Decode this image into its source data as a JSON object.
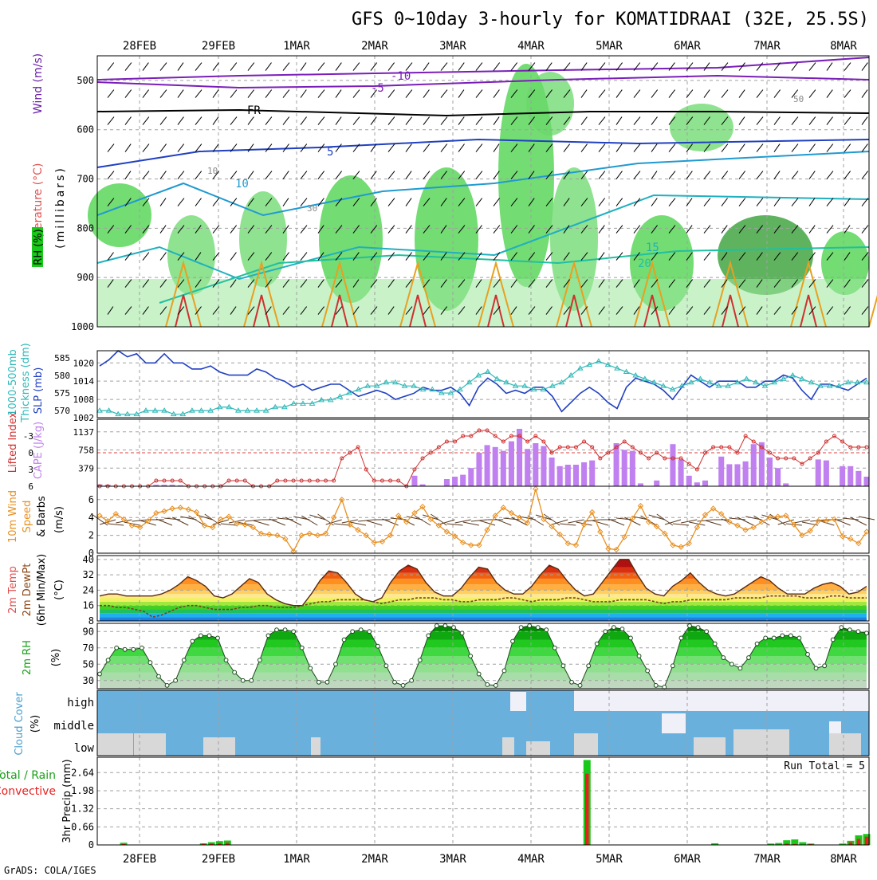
{
  "title": "GFS 0~10day 3-hourly for KOMATIDRAAI (32E, 25.5S)",
  "credit": "GrADS: COLA/IGES",
  "colors": {
    "rh": "#19c819",
    "temp": "#e05050",
    "wind": "#6a1fa8",
    "slp": "#2040c0",
    "thick": "#30b8b8",
    "cape": "#c080f0",
    "lifted": "#d03030",
    "wind10": "#e89020",
    "cloud": "#6ab0dc",
    "precip_total": "#19c819",
    "precip_conv": "#e82020",
    "grid": "#a0a0a0"
  },
  "chart_data": [
    {
      "type": "heatmap",
      "name": "upper-air",
      "x_dates": [
        "28FEB",
        "29FEB",
        "1MAR",
        "2MAR",
        "3MAR",
        "4MAR",
        "5MAR",
        "6MAR",
        "7MAR",
        "8MAR"
      ],
      "y_ticks": [
        500,
        600,
        700,
        800,
        900,
        1000
      ],
      "ylim": [
        450,
        1000
      ],
      "ylabel": "(millibars)",
      "legend": [
        "RH (%)",
        "Temperature (°C)",
        "Wind (m/s)"
      ],
      "temp_contour_labels": [
        "-10",
        "-5",
        "FR",
        "5",
        "10",
        "15",
        "20"
      ],
      "rh_contour_labels": [
        "10",
        "30",
        "50"
      ]
    },
    {
      "type": "line",
      "name": "slp-thickness",
      "series": [
        {
          "name": "SLP (mb)",
          "axis": "right",
          "values": [
            1019,
            1021,
            1024,
            1022,
            1023,
            1020,
            1020,
            1023,
            1020,
            1020,
            1018,
            1018,
            1019,
            1017,
            1016,
            1016,
            1016,
            1018,
            1017,
            1015,
            1014,
            1012,
            1013,
            1011,
            1012,
            1013,
            1013,
            1011,
            1009,
            1010,
            1011,
            1010,
            1008,
            1009,
            1010,
            1012,
            1011,
            1011,
            1012,
            1010,
            1006,
            1012,
            1015,
            1013,
            1010,
            1011,
            1010,
            1012,
            1012,
            1009,
            1004,
            1007,
            1010,
            1012,
            1010,
            1007,
            1005,
            1012,
            1015,
            1014,
            1013,
            1011,
            1008,
            1012,
            1016,
            1014,
            1012,
            1014,
            1014,
            1014,
            1012,
            1012,
            1014,
            1014,
            1016,
            1015,
            1011,
            1008,
            1013,
            1013,
            1012,
            1011,
            1013,
            1015
          ]
        },
        {
          "name": "1000-500mb Thickness (dm)",
          "axis": "left",
          "values": [
            570,
            570,
            569,
            569,
            569,
            570,
            570,
            570,
            569,
            569,
            570,
            570,
            570,
            571,
            571,
            570,
            570,
            570,
            570,
            571,
            571,
            572,
            572,
            572,
            573,
            573,
            574,
            575,
            576,
            577,
            577,
            578,
            578,
            577,
            577,
            576,
            576,
            575,
            575,
            576,
            578,
            580,
            581,
            579,
            578,
            577,
            577,
            576,
            576,
            577,
            578,
            580,
            582,
            583,
            584,
            583,
            582,
            581,
            580,
            579,
            578,
            577,
            576,
            577,
            578,
            579,
            578,
            577,
            577,
            578,
            579,
            578,
            577,
            578,
            579,
            580,
            579,
            578,
            577,
            577,
            577,
            578,
            578,
            578
          ]
        }
      ],
      "y_left_ticks": [
        570,
        575,
        580,
        585
      ],
      "y_right_ticks": [
        1002,
        1008,
        1014,
        1020
      ]
    },
    {
      "type": "bar",
      "name": "cape-lifted",
      "series": [
        {
          "name": "CAPE (J/kg)",
          "values": [
            40,
            30,
            0,
            0,
            0,
            0,
            0,
            30,
            30,
            30,
            20,
            0,
            0,
            0,
            0,
            0,
            0,
            0,
            0,
            0,
            0,
            0,
            0,
            0,
            0,
            0,
            0,
            0,
            0,
            0,
            0,
            0,
            0,
            0,
            0,
            0,
            0,
            0,
            0,
            220,
            40,
            0,
            0,
            150,
            200,
            240,
            380,
            700,
            860,
            820,
            740,
            940,
            1200,
            780,
            900,
            840,
            600,
            420,
            450,
            450,
            500,
            540,
            0,
            0,
            900,
            760,
            740,
            60,
            0,
            120,
            0,
            880,
            560,
            220,
            80,
            120,
            0,
            620,
            460,
            460,
            520,
            880,
            920,
            600,
            380,
            60,
            0,
            0,
            0,
            560,
            540,
            0,
            420,
            420,
            320,
            200
          ]
        },
        {
          "name": "Lifted Index",
          "values": [
            6,
            6,
            6,
            6,
            6,
            6,
            6,
            5,
            5,
            5,
            5,
            6,
            6,
            6,
            6,
            6,
            5,
            5,
            5,
            6,
            6,
            6,
            5,
            5,
            5,
            5,
            5,
            5,
            5,
            5,
            1,
            0,
            -1,
            3,
            5,
            5,
            5,
            5,
            6,
            3,
            1,
            0,
            -1,
            -2,
            -2,
            -3,
            -3,
            -4,
            -4,
            -3,
            -2,
            -3,
            -3,
            -2,
            -3,
            -2,
            0,
            -1,
            -1,
            -1,
            -2,
            -1,
            1,
            0,
            -1,
            -2,
            -1,
            0,
            1,
            0,
            1,
            1,
            1,
            2,
            3,
            0,
            -1,
            -1,
            -1,
            0,
            -3,
            -2,
            -1,
            0,
            1,
            1,
            1,
            2,
            1,
            0,
            -2,
            -3,
            -2,
            -1,
            -1,
            -1
          ]
        }
      ],
      "y_cape_ticks": [
        379,
        758,
        1137
      ],
      "y_li_ticks": [
        -3,
        0,
        3,
        6
      ]
    },
    {
      "type": "line",
      "name": "wind10m",
      "series": [
        {
          "name": "10m Wind Speed (m/s)",
          "values": [
            4.2,
            3.6,
            4.4,
            3.8,
            3.1,
            2.9,
            3.6,
            4.5,
            4.7,
            5.0,
            5.1,
            4.9,
            4.6,
            3.1,
            2.9,
            3.8,
            4.1,
            3.3,
            3.2,
            2.9,
            2.2,
            2.1,
            2.0,
            1.6,
            0.2,
            2.0,
            2.2,
            2.0,
            2.2,
            4.0,
            6.0,
            3.2,
            2.6,
            2.0,
            1.2,
            1.3,
            2.0,
            4.2,
            3.5,
            4.5,
            5.2,
            3.8,
            3.1,
            2.4,
            1.9,
            1.2,
            0.9,
            0.9,
            2.6,
            4.2,
            5.1,
            4.5,
            4.0,
            3.4,
            7.2,
            3.8,
            3.0,
            2.1,
            1.1,
            0.9,
            3.2,
            4.6,
            2.4,
            0.5,
            0.4,
            1.8,
            3.9,
            5.3,
            3.5,
            3.0,
            2.2,
            0.9,
            0.7,
            1.1,
            2.9,
            4.3,
            5.0,
            4.4,
            3.5,
            3.1,
            2.6,
            2.9,
            3.5,
            4.0,
            4.1,
            4.2,
            3.2,
            2.0,
            2.5,
            3.6,
            3.6,
            3.8,
            1.9,
            1.6,
            1.1,
            2.4
          ]
        }
      ],
      "y_ticks": [
        0,
        2,
        4,
        6
      ],
      "ylabel": "10m Wind Speed & Barbs (m/s)"
    },
    {
      "type": "area",
      "name": "temp2m",
      "series": [
        {
          "name": "2m Temp",
          "values": [
            21,
            22,
            22,
            21,
            21,
            21,
            21,
            22,
            24,
            27,
            31,
            29,
            26,
            21,
            20,
            22,
            26,
            30,
            28,
            22,
            19,
            17,
            16,
            16,
            22,
            29,
            34,
            33,
            28,
            22,
            19,
            18,
            20,
            28,
            34,
            37,
            35,
            28,
            23,
            21,
            21,
            25,
            31,
            36,
            35,
            28,
            24,
            22,
            22,
            26,
            32,
            37,
            35,
            29,
            24,
            21,
            22,
            28,
            34,
            40,
            40,
            32,
            25,
            22,
            21,
            26,
            29,
            33,
            28,
            24,
            22,
            21,
            22,
            25,
            28,
            31,
            29,
            25,
            22,
            22,
            22,
            25,
            27,
            28,
            26,
            22,
            23,
            26
          ]
        },
        {
          "name": "2m DewPt",
          "values": [
            16,
            16,
            15,
            15,
            14,
            13,
            10,
            11,
            13,
            15,
            16,
            16,
            15,
            14,
            14,
            14,
            15,
            15,
            16,
            16,
            15,
            15,
            15,
            16,
            17,
            18,
            18,
            19,
            19,
            19,
            19,
            18,
            17,
            18,
            19,
            19,
            20,
            20,
            20,
            19,
            19,
            18,
            18,
            19,
            19,
            19,
            20,
            20,
            19,
            18,
            19,
            19,
            19,
            20,
            20,
            19,
            18,
            18,
            18,
            19,
            19,
            19,
            19,
            18,
            17,
            18,
            18,
            19,
            19,
            19,
            19,
            19,
            20,
            20,
            20,
            20,
            21,
            21,
            21,
            21,
            20,
            20,
            20,
            21,
            21,
            20,
            20,
            20
          ]
        }
      ],
      "y_ticks": [
        8,
        16,
        24,
        32,
        40
      ],
      "ylabel": "(°C)"
    },
    {
      "type": "area",
      "name": "rh2m",
      "series": [
        {
          "name": "2m RH",
          "values": [
            38,
            55,
            70,
            68,
            68,
            70,
            52,
            35,
            24,
            30,
            55,
            78,
            85,
            85,
            82,
            55,
            40,
            30,
            30,
            55,
            85,
            92,
            92,
            90,
            70,
            45,
            28,
            28,
            50,
            80,
            90,
            92,
            90,
            72,
            48,
            28,
            24,
            30,
            55,
            85,
            97,
            97,
            95,
            88,
            60,
            38,
            25,
            24,
            42,
            78,
            95,
            97,
            95,
            92,
            70,
            48,
            28,
            24,
            48,
            75,
            90,
            95,
            93,
            82,
            60,
            42,
            24,
            22,
            48,
            82,
            97,
            95,
            90,
            75,
            58,
            50,
            45,
            58,
            75,
            82,
            82,
            85,
            85,
            82,
            62,
            45,
            48,
            80,
            95,
            92,
            90,
            88
          ]
        }
      ],
      "y_ticks": [
        30,
        50,
        70,
        90
      ],
      "ylabel": "(%)"
    },
    {
      "type": "bar",
      "name": "cloud",
      "categories": [
        "high",
        "middle",
        "low"
      ],
      "ylabel": "Cloud Cover (%)"
    },
    {
      "type": "bar",
      "name": "precip",
      "series": [
        {
          "name": "Total / Rain",
          "values": [
            0,
            0,
            0,
            0.08,
            0,
            0,
            0,
            0,
            0,
            0,
            0,
            0,
            0,
            0.06,
            0.1,
            0.14,
            0.16,
            0,
            0,
            0,
            0,
            0,
            0,
            0,
            0,
            0,
            0,
            0,
            0,
            0,
            0,
            0,
            0,
            0,
            0,
            0,
            0,
            0,
            0,
            0,
            0,
            0,
            0,
            0,
            0,
            0,
            0,
            0,
            0,
            0,
            0,
            0,
            0,
            0,
            0,
            0,
            0,
            0,
            0,
            0,
            0,
            3.1,
            0,
            0,
            0,
            0,
            0,
            0,
            0,
            0,
            0,
            0,
            0,
            0,
            0,
            0,
            0,
            0.06,
            0,
            0,
            0,
            0,
            0,
            0,
            0.05,
            0.07,
            0.17,
            0.2,
            0.1,
            0.05,
            0,
            0,
            0,
            0.05,
            0.15,
            0.35,
            0.4
          ]
        },
        {
          "name": "Convective",
          "values": [
            0,
            0,
            0,
            0.03,
            0,
            0,
            0,
            0,
            0,
            0,
            0,
            0,
            0,
            0.04,
            0.05,
            0.06,
            0.08,
            0,
            0,
            0,
            0,
            0,
            0,
            0,
            0,
            0,
            0,
            0,
            0,
            0,
            0,
            0,
            0,
            0,
            0,
            0,
            0,
            0,
            0,
            0,
            0,
            0,
            0,
            0,
            0,
            0,
            0,
            0,
            0,
            0,
            0,
            0,
            0,
            0,
            0,
            0,
            0,
            0,
            0,
            0,
            0,
            2.6,
            0,
            0,
            0,
            0,
            0,
            0,
            0,
            0,
            0,
            0,
            0,
            0,
            0,
            0,
            0,
            0,
            0,
            0,
            0,
            0,
            0,
            0,
            0,
            0,
            0.05,
            0.03,
            0,
            0.03,
            0,
            0,
            0,
            0,
            0.1,
            0.22,
            0.3
          ]
        }
      ],
      "y_ticks": [
        0,
        0.66,
        1.32,
        1.98,
        2.64
      ],
      "ylabel": "3hr Precip (mm)",
      "run_total_label": "Run Total = 5"
    }
  ],
  "labels": {
    "rh": "RH (%)",
    "temperature": "Temperature (°C)",
    "wind": "Wind (m/s)",
    "millibars": "(millibars)",
    "thickness1": "1000-500mb",
    "thickness2": "Thickness (dm)",
    "slp": "SLP (mb)",
    "lifted": "Lifted Index",
    "cape": "CAPE (J/kg)",
    "wind10_a": "10m Wind",
    "wind10_b": "Speed",
    "wind10_c": "& Barbs",
    "wind10_unit": "(m/s)",
    "temp_a": "2m Temp",
    "temp_b": "2m DewPt",
    "temp_c": "(6hr Min/Max)",
    "temp_unit": "(°C)",
    "rh2m": "2m RH",
    "rh2m_unit": "(%)",
    "cloud": "Cloud Cover",
    "cloud_unit": "(%)",
    "precip_total": "Total / Rain",
    "precip_conv": "Convective",
    "precip_axis": "3hr Precip (mm)",
    "run_total": "Run Total = 5"
  }
}
